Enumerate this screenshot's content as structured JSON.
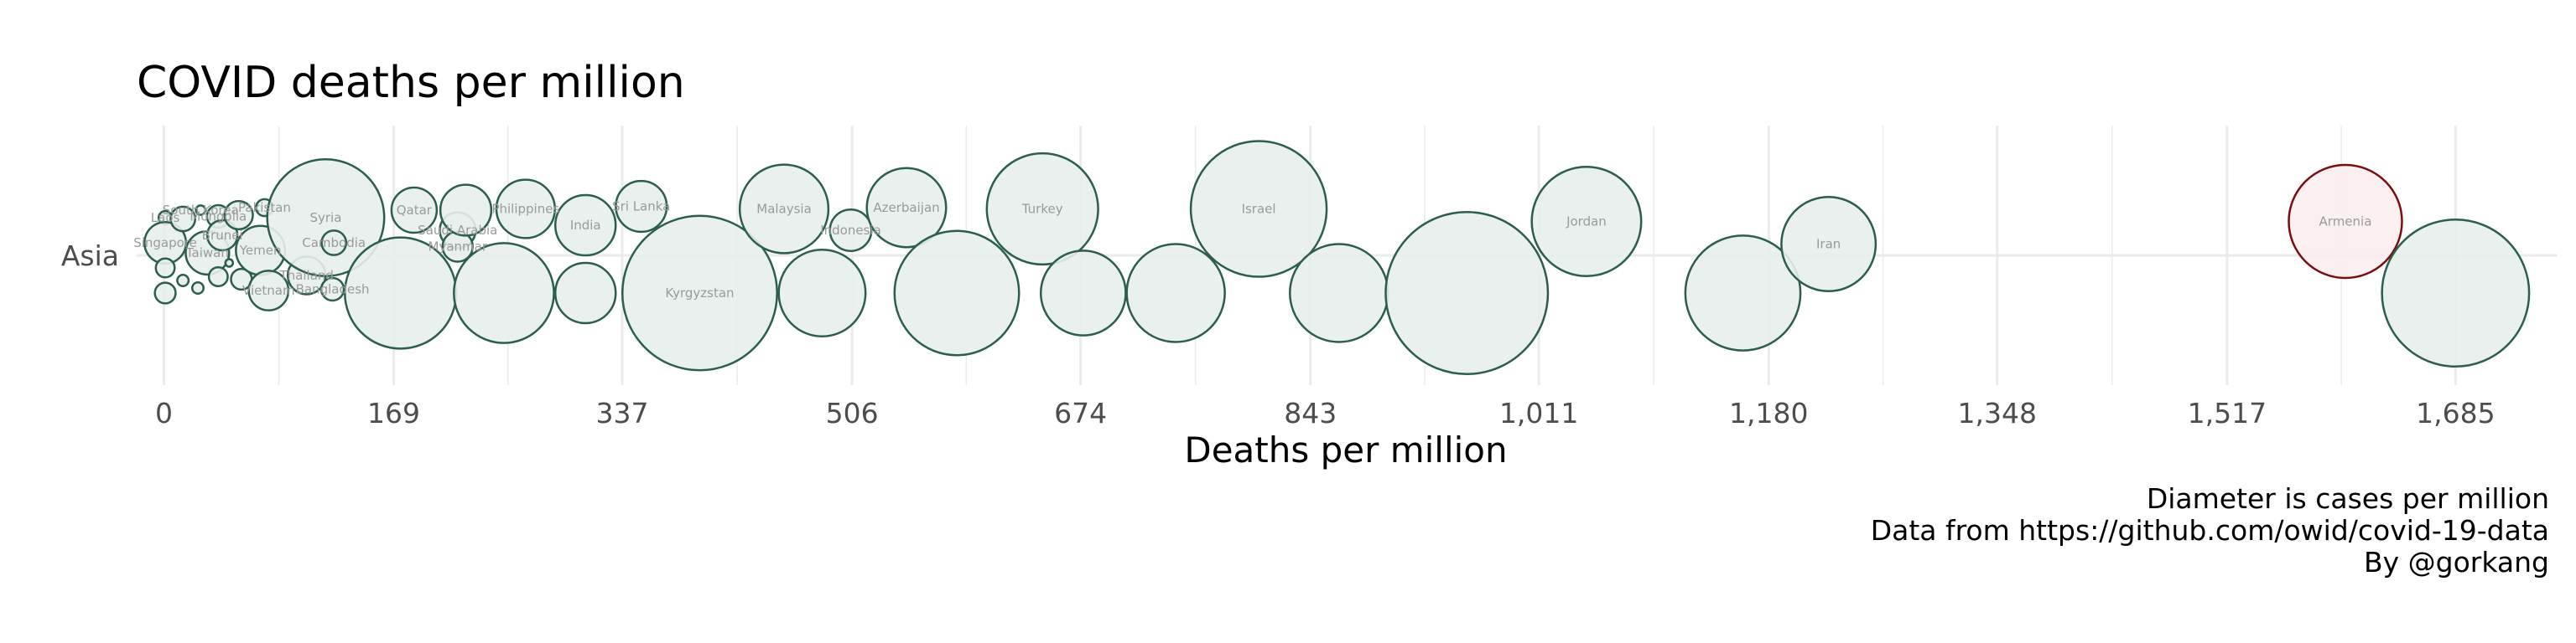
{
  "chart_data": {
    "type": "scatter",
    "title": "COVID deaths per million",
    "xlabel": "Deaths per million",
    "ylabel": "",
    "xlim": [
      -20,
      1760
    ],
    "x_ticks": [
      0,
      169,
      337,
      506,
      674,
      843,
      1011,
      1180,
      1348,
      1517,
      1685
    ],
    "x_tick_labels": [
      "0",
      "169",
      "337",
      "506",
      "674",
      "843",
      "1,011",
      "1,180",
      "1,348",
      "1,517",
      "1,685"
    ],
    "y_categories": [
      "Asia"
    ],
    "grid": true,
    "size_encoding": "Diameter is cases per million",
    "colors": {
      "default_stroke": "#2b5e4e",
      "default_fill": "#e8eeec",
      "highlight_stroke": "#7b0c10",
      "highlight_fill": "#fbeeee",
      "grid": "#ebebeb"
    },
    "points": [
      {
        "label": "Laos",
        "x": 1,
        "lane": 0.3
      },
      {
        "label": "Singapore",
        "x": 1,
        "lane": 0.1
      },
      {
        "label": "",
        "x": 1,
        "lane": -0.1
      },
      {
        "label": "",
        "x": 1,
        "lane": -0.3
      },
      {
        "label": "",
        "x": 14,
        "lane": 0.29
      },
      {
        "label": "",
        "x": 14,
        "lane": -0.2
      },
      {
        "label": "South Korea",
        "x": 27,
        "lane": 0.36
      },
      {
        "label": "Taiwan",
        "x": 32,
        "lane": 0.02
      },
      {
        "label": "",
        "x": 25,
        "lane": -0.26
      },
      {
        "label": "Mongolia",
        "x": 40,
        "lane": 0.31
      },
      {
        "label": "Brunei",
        "x": 43,
        "lane": 0.16
      },
      {
        "label": "",
        "x": 40,
        "lane": -0.17
      },
      {
        "label": "",
        "x": 48,
        "lane": -0.06
      },
      {
        "label": "",
        "x": 55,
        "lane": 0.32
      },
      {
        "label": "",
        "x": 57,
        "lane": -0.19
      },
      {
        "label": "Yemen",
        "x": 71,
        "lane": 0.04
      },
      {
        "label": "Pakistan",
        "x": 74,
        "lane": 0.38
      },
      {
        "label": "Vietnam",
        "x": 77,
        "lane": -0.28
      },
      {
        "label": "Thailand",
        "x": 105,
        "lane": -0.16
      },
      {
        "label": "Syria",
        "x": 119,
        "lane": 0.3
      },
      {
        "label": "Cambodia",
        "x": 125,
        "lane": 0.1
      },
      {
        "label": "Bangladesh",
        "x": 124,
        "lane": -0.27
      },
      {
        "label": "Qatar",
        "x": 184,
        "lane": 0.36
      },
      {
        "label": "",
        "x": 174,
        "lane": -0.3
      },
      {
        "label": "Saudi Arabia",
        "x": 216,
        "lane": 0.2
      },
      {
        "label": "Myanmar",
        "x": 216,
        "lane": 0.07
      },
      {
        "label": "",
        "x": 222,
        "lane": 0.36
      },
      {
        "label": "Philippines",
        "x": 266,
        "lane": 0.37
      },
      {
        "label": "",
        "x": 250,
        "lane": -0.3
      },
      {
        "label": "India",
        "x": 310,
        "lane": 0.24
      },
      {
        "label": "",
        "x": 310,
        "lane": -0.3
      },
      {
        "label": "Sri Lanka",
        "x": 351,
        "lane": 0.39
      },
      {
        "label": "Kyrgyzstan",
        "x": 394,
        "lane": -0.3
      },
      {
        "label": "Malaysia",
        "x": 456,
        "lane": 0.37
      },
      {
        "label": "Indonesia",
        "x": 505,
        "lane": 0.2
      },
      {
        "label": "",
        "x": 484,
        "lane": -0.3
      },
      {
        "label": "Azerbaijan",
        "x": 546,
        "lane": 0.38
      },
      {
        "label": "",
        "x": 583,
        "lane": -0.3
      },
      {
        "label": "Turkey",
        "x": 646,
        "lane": 0.37
      },
      {
        "label": "",
        "x": 676,
        "lane": -0.3
      },
      {
        "label": "",
        "x": 744,
        "lane": -0.3
      },
      {
        "label": "Israel",
        "x": 805,
        "lane": 0.37
      },
      {
        "label": "",
        "x": 864,
        "lane": -0.3
      },
      {
        "label": "",
        "x": 958,
        "lane": -0.3
      },
      {
        "label": "Jordan",
        "x": 1046,
        "lane": 0.27
      },
      {
        "label": "",
        "x": 1161,
        "lane": -0.3
      },
      {
        "label": "Iran",
        "x": 1224,
        "lane": 0.09
      },
      {
        "label": "Armenia",
        "x": 1604,
        "lane": 0.27,
        "highlight": true
      },
      {
        "label": "",
        "x": 1685,
        "lane": -0.3
      }
    ],
    "diameters": [
      {
        "label": "Laos",
        "size": 0.35
      },
      {
        "label": "Singapore",
        "size": 1.1
      },
      {
        "label": "",
        "size": 0.5
      },
      {
        "label": "",
        "size": 0.55
      },
      {
        "label": "",
        "size": 0.65
      },
      {
        "label": "",
        "size": 0.3
      },
      {
        "label": "South Korea",
        "size": 0.25
      },
      {
        "label": "Taiwan",
        "size": 1.15
      },
      {
        "label": "",
        "size": 0.3
      },
      {
        "label": "Mongolia",
        "size": 0.6
      },
      {
        "label": "Brunei",
        "size": 0.8
      },
      {
        "label": "",
        "size": 0.5
      },
      {
        "label": "",
        "size": 0.2
      },
      {
        "label": "",
        "size": 0.75
      },
      {
        "label": "",
        "size": 0.55
      },
      {
        "label": "Yemen",
        "size": 1.3
      },
      {
        "label": "Pakistan",
        "size": 0.45
      },
      {
        "label": "Vietnam",
        "size": 1.05
      },
      {
        "label": "Thailand",
        "size": 1.0
      },
      {
        "label": "Syria",
        "size": 3.1
      },
      {
        "label": "Cambodia",
        "size": 0.65
      },
      {
        "label": "Bangladesh",
        "size": 0.6
      },
      {
        "label": "Qatar",
        "size": 1.2
      },
      {
        "label": "",
        "size": 2.95
      },
      {
        "label": "Saudi Arabia",
        "size": 0.95
      },
      {
        "label": "Myanmar",
        "size": 0.8
      },
      {
        "label": "",
        "size": 1.35
      },
      {
        "label": "Philippines",
        "size": 1.55
      },
      {
        "label": "",
        "size": 2.65
      },
      {
        "label": "India",
        "size": 1.6
      },
      {
        "label": "",
        "size": 1.6
      },
      {
        "label": "Sri Lanka",
        "size": 1.35
      },
      {
        "label": "Kyrgyzstan",
        "size": 4.1
      },
      {
        "label": "Malaysia",
        "size": 2.35
      },
      {
        "label": "Indonesia",
        "size": 1.1
      },
      {
        "label": "",
        "size": 2.3
      },
      {
        "label": "Azerbaijan",
        "size": 2.1
      },
      {
        "label": "",
        "size": 3.3
      },
      {
        "label": "Turkey",
        "size": 2.95
      },
      {
        "label": "",
        "size": 2.25
      },
      {
        "label": "",
        "size": 2.6
      },
      {
        "label": "Israel",
        "size": 3.6
      },
      {
        "label": "",
        "size": 2.6
      },
      {
        "label": "",
        "size": 4.3
      },
      {
        "label": "Jordan",
        "size": 2.9
      },
      {
        "label": "",
        "size": 3.05
      },
      {
        "label": "Iran",
        "size": 2.5
      },
      {
        "label": "Armenia",
        "size": 3.0
      },
      {
        "label": "",
        "size": 3.9
      }
    ],
    "captions": [
      "Diameter is cases per million",
      "Data from https://github.com/owid/covid-19-data",
      "By @gorkang"
    ]
  }
}
